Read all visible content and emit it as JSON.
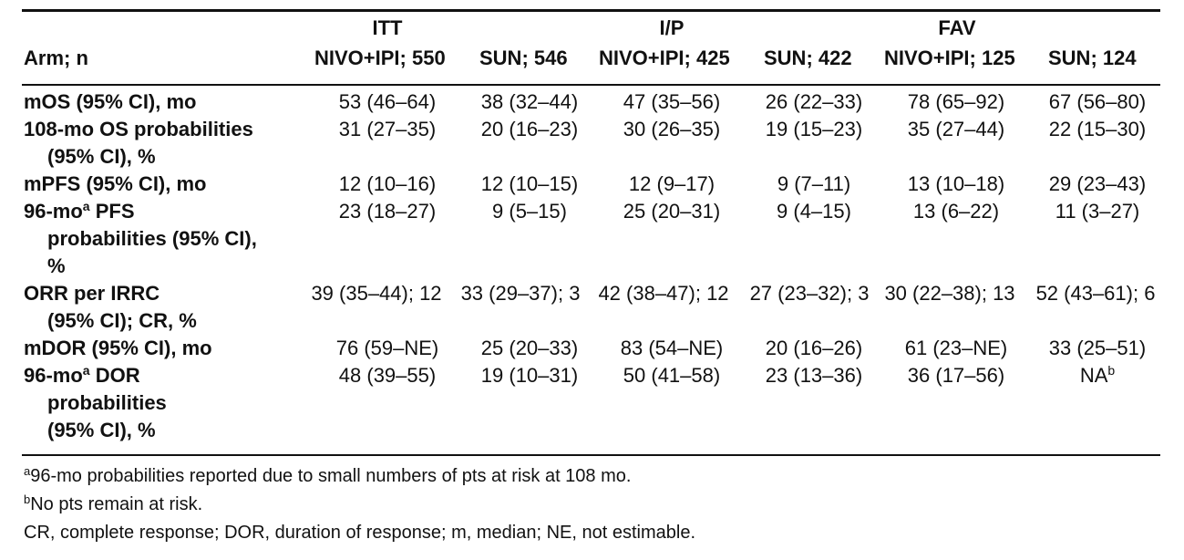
{
  "header": {
    "arm_label": "Arm; n",
    "groups": [
      "ITT",
      "I/P",
      "FAV"
    ],
    "columns": [
      "NIVO+IPI; 550",
      "SUN; 546",
      "NIVO+IPI; 425",
      "SUN; 422",
      "NIVO+IPI; 125",
      "SUN; 124"
    ]
  },
  "rows": [
    {
      "label": [
        "mOS (95% CI), mo"
      ],
      "cells": [
        "53 (46–64)",
        "38 (32–44)",
        "47 (35–56)",
        "26 (22–33)",
        "78 (65–92)",
        "67 (56–80)"
      ]
    },
    {
      "label": [
        "108-mo OS probabilities",
        "(95% CI), %"
      ],
      "cells": [
        "31 (27–35)",
        "20 (16–23)",
        "30 (26–35)",
        "19 (15–23)",
        "35 (27–44)",
        "22 (15–30)"
      ]
    },
    {
      "label": [
        "mPFS (95% CI), mo"
      ],
      "cells": [
        "12 (10–16)",
        "12 (10–15)",
        "12 (9–17)",
        "9 (7–11)",
        "13 (10–18)",
        "29 (23–43)"
      ]
    },
    {
      "label": [
        "96-mo",
        "PFS",
        "probabilities (95% CI),",
        "%"
      ],
      "sup": "a",
      "cells": [
        "23 (18–27)",
        "9 (5–15)",
        "25 (20–31)",
        "9 (4–15)",
        "13 (6–22)",
        "11 (3–27)"
      ]
    },
    {
      "label": [
        "ORR per IRRC",
        "(95% CI); CR, %"
      ],
      "cells": [
        "39 (35–44); 12",
        "33 (29–37); 3",
        "42 (38–47); 12",
        "27 (23–32); 3",
        "30 (22–38); 13",
        "52 (43–61); 6"
      ]
    },
    {
      "label": [
        "mDOR (95% CI), mo"
      ],
      "cells": [
        "76 (59–NE)",
        "25 (20–33)",
        "83 (54–NE)",
        "20 (16–26)",
        "61 (23–NE)",
        "33 (25–51)"
      ]
    },
    {
      "label": [
        "96-mo",
        "DOR",
        "probabilities",
        "(95% CI), %"
      ],
      "sup": "a",
      "cells": [
        "48 (39–55)",
        "19 (10–31)",
        "50 (41–58)",
        "23 (13–36)",
        "36 (17–56)",
        "NA"
      ],
      "last_sup": "b"
    }
  ],
  "footnotes": {
    "a_mark": "a",
    "a_text": "96-mo probabilities reported due to small numbers of pts at risk at 108 mo.",
    "b_mark": "b",
    "b_text": "No pts remain at risk.",
    "abbrev": "CR, complete response; DOR, duration of response; m, median; NE, not estimable."
  }
}
